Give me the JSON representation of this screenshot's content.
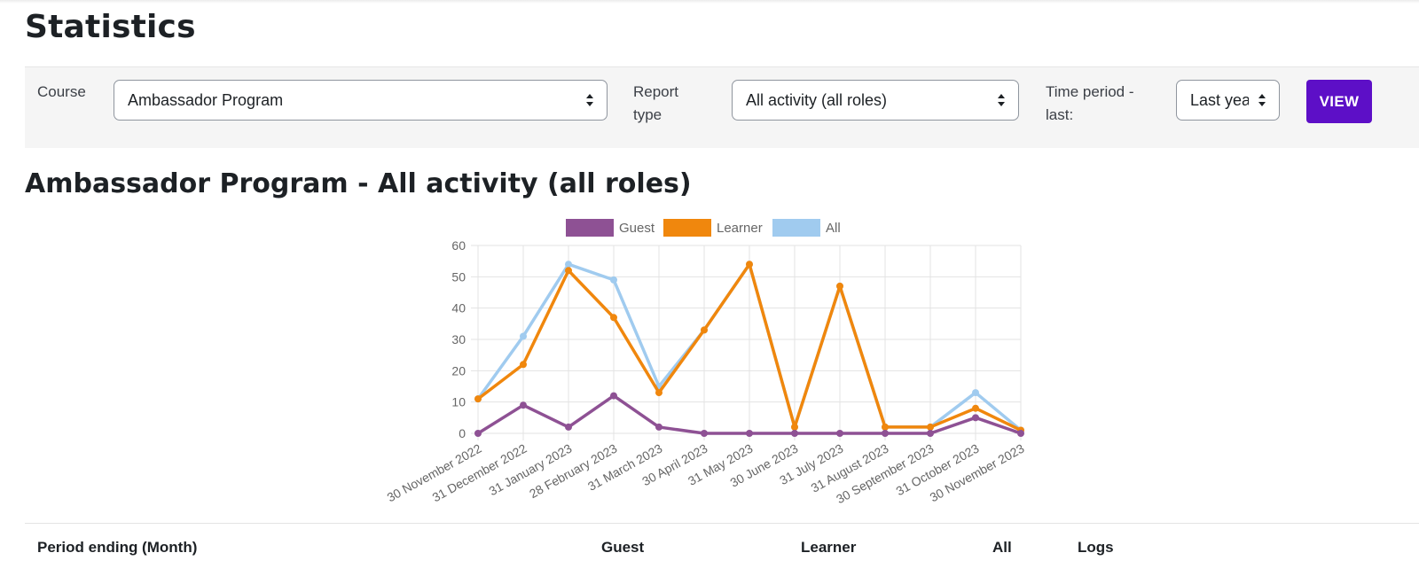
{
  "page": {
    "title": "Statistics"
  },
  "form": {
    "course_label": "Course",
    "course_value": "Ambassador Program",
    "report_label": "Report type",
    "report_value": "All activity (all roles)",
    "time_label": "Time period - last:",
    "time_value": "Last year",
    "view_label": "VIEW"
  },
  "report_title": "Ambassador Program - All activity (all roles)",
  "chart_data": {
    "type": "line",
    "title": "",
    "xlabel": "",
    "ylabel": "",
    "ylim": [
      0,
      60
    ],
    "yticks": [
      0,
      10,
      20,
      30,
      40,
      50,
      60
    ],
    "grid": true,
    "legend_position": "top",
    "categories": [
      "30 November 2022",
      "31 December 2022",
      "31 January 2023",
      "28 February 2023",
      "31 March 2023",
      "30 April 2023",
      "31 May 2023",
      "30 June 2023",
      "31 July 2023",
      "31 August 2023",
      "30 September 2023",
      "31 October 2023",
      "30 November 2023"
    ],
    "series": [
      {
        "name": "Guest",
        "color": "#8e5194",
        "values": [
          0,
          9,
          2,
          12,
          2,
          0,
          0,
          0,
          0,
          0,
          0,
          5,
          0
        ]
      },
      {
        "name": "Learner",
        "color": "#f0870d",
        "values": [
          11,
          22,
          52,
          37,
          13,
          33,
          54,
          2,
          47,
          2,
          2,
          8,
          1
        ]
      },
      {
        "name": "All",
        "color": "#a0cbef",
        "values": [
          11,
          31,
          54,
          49,
          15,
          33,
          54,
          2,
          47,
          2,
          2,
          13,
          1
        ]
      }
    ]
  },
  "table": {
    "headers": [
      "Period ending (Month)",
      "Guest",
      "Learner",
      "All",
      "Logs"
    ]
  }
}
